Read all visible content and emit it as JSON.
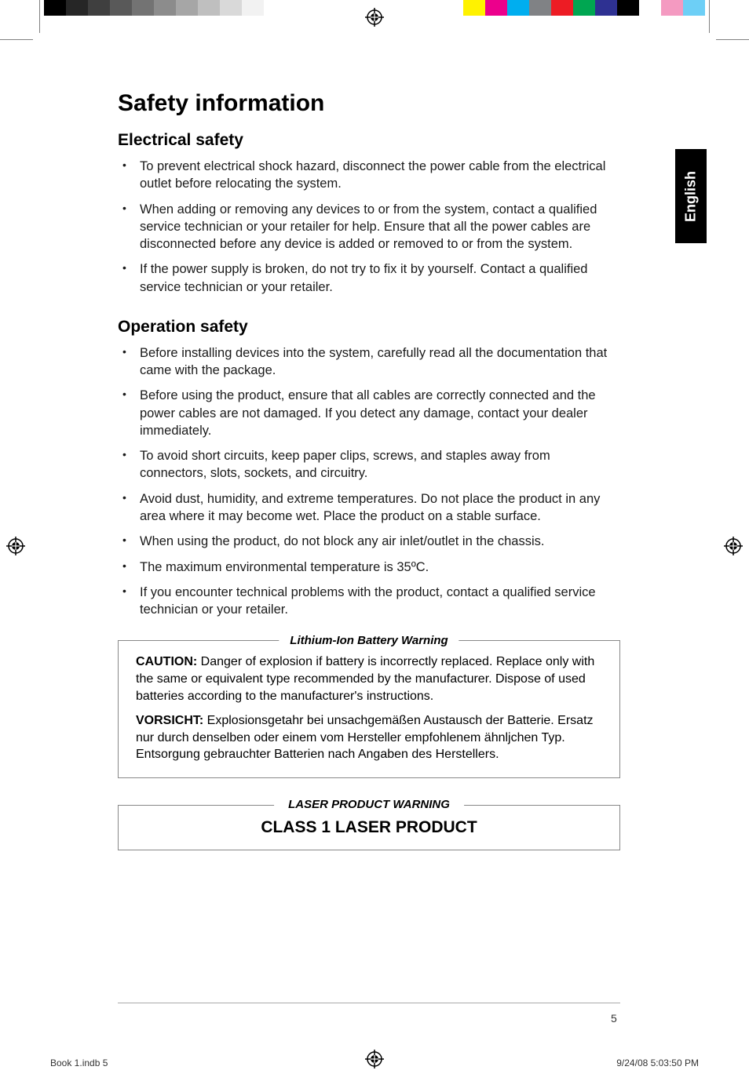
{
  "printerBars": {
    "leftGrays": [
      "#000000",
      "#262626",
      "#3f3f3f",
      "#595959",
      "#737373",
      "#8c8c8c",
      "#a6a6a6",
      "#bfbfbf",
      "#d9d9d9",
      "#f2f2f2",
      "#ffffff"
    ],
    "rightColors": [
      "#fff200",
      "#ec008c",
      "#00aeef",
      "#808285",
      "#ed1c24",
      "#00a651",
      "#2e3192",
      "#000000",
      "#ffffff",
      "#f49ac1",
      "#6dcff6"
    ]
  },
  "langTab": "English",
  "h1": "Safety information",
  "section1": {
    "title": "Electrical safety",
    "items": [
      "To prevent electrical shock hazard, disconnect the power cable from the electrical outlet before relocating the system.",
      "When adding or removing any devices to or from the system, contact a qualified service technician or your retailer for help. Ensure that all the power cables are disconnected before any device is added or removed to or from the system.",
      "If the power supply is broken, do not try to fix it by yourself. Contact a qualified service technician or your retailer."
    ]
  },
  "section2": {
    "title": "Operation safety",
    "items": [
      "Before installing devices into the system, carefully read all the documentation that came with the package.",
      "Before using the product, ensure that all cables are correctly connected and the power cables are not damaged. If you detect any damage, contact your dealer immediately.",
      "To avoid short circuits, keep paper clips, screws, and staples away from connectors, slots, sockets, and circuitry.",
      "Avoid dust, humidity, and extreme temperatures. Do not place the product in any area where it may become wet. Place the product on a stable surface.",
      "When using the product, do not block any air inlet/outlet in the chassis.",
      "The maximum environmental temperature is 35ºC.",
      "If you encounter technical problems with the product, contact a qualified service technician or your retailer."
    ]
  },
  "batteryWarning": {
    "legend": "Lithium-Ion Battery Warning",
    "p1Label": "CAUTION:",
    "p1": " Danger of explosion if battery is incorrectly replaced. Replace only with the same or equivalent type recommended by the manufacturer. Dispose of used batteries according to the manufacturer's instructions.",
    "p2Label": "VORSICHT:",
    "p2": " Explosionsgetahr bei unsachgemäßen Austausch der Batterie. Ersatz nur durch denselben oder einem vom Hersteller empfohlenem ähnljchen Typ. Entsorgung gebrauchter Batterien nach Angaben des Herstellers."
  },
  "laserWarning": {
    "legend": "LASER PRODUCT WARNING",
    "text": "CLASS 1 LASER PRODUCT"
  },
  "pageNumber": "5",
  "footer": {
    "left": "Book 1.indb   5",
    "right": "9/24/08   5:03:50 PM"
  }
}
